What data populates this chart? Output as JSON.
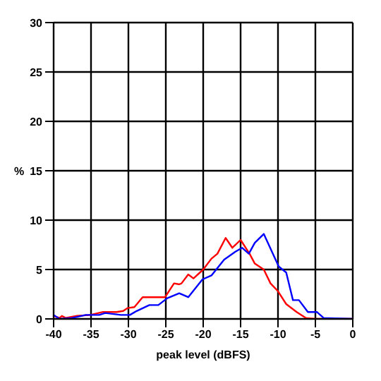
{
  "chart_data": {
    "type": "line",
    "xlabel": "peak level (dBFS)",
    "ylabel": "%",
    "xlim": [
      -40,
      0
    ],
    "xticks": [
      -40,
      -35,
      -30,
      -25,
      -20,
      -15,
      -10,
      -5,
      0
    ],
    "ylim": [
      0,
      30
    ],
    "yticks": [
      0,
      5,
      10,
      15,
      20,
      25,
      30
    ],
    "grid": true,
    "marker": "none",
    "line_style": "solid",
    "series": [
      {
        "color": "#ff0000",
        "x": [
          -40,
          -39.2,
          -38.9,
          -38.4,
          -36.9,
          -35.1,
          -33.4,
          -31.6,
          -30.7,
          -30.1,
          -29.2,
          -28.1,
          -25.1,
          -23.9,
          -23.2,
          -22.9,
          -22,
          -21.3,
          -20,
          -18.9,
          -18.1,
          -17,
          -16.1,
          -15,
          -13.8,
          -13.1,
          -11.9,
          -11,
          -10,
          -8.9,
          -7.5,
          -6.3,
          -5.1,
          0
        ],
        "values": [
          0.3,
          0.1,
          0.3,
          0.1,
          0.3,
          0.4,
          0.7,
          0.7,
          0.8,
          1.1,
          1.2,
          2.2,
          2.2,
          3.6,
          3.5,
          3.6,
          4.5,
          4.1,
          5,
          6.1,
          6.6,
          8.2,
          7.2,
          8,
          6.6,
          5.6,
          5,
          3.6,
          2.8,
          1.5,
          0.7,
          0.1,
          0,
          0
        ]
      },
      {
        "color": "#0000ff",
        "x": [
          -40,
          -39.2,
          -37.5,
          -35.7,
          -33.9,
          -33.1,
          -31,
          -29.8,
          -28.9,
          -27.2,
          -26,
          -24.8,
          -23.2,
          -22.6,
          -22,
          -20.1,
          -18.9,
          -17.2,
          -15.7,
          -14.8,
          -13.9,
          -13.1,
          -11.9,
          -9.9,
          -8.9,
          -8,
          -7.2,
          -6,
          -4.8,
          -3.9,
          0
        ],
        "values": [
          0.4,
          0,
          0.1,
          0.4,
          0.4,
          0.6,
          0.4,
          0.4,
          0.8,
          1.4,
          1.4,
          2.1,
          2.6,
          2.4,
          2.2,
          4,
          4.4,
          6,
          6.8,
          7.2,
          6.6,
          7.7,
          8.6,
          5.3,
          4.7,
          1.9,
          1.9,
          0.7,
          0.7,
          0.1,
          0
        ]
      }
    ]
  }
}
